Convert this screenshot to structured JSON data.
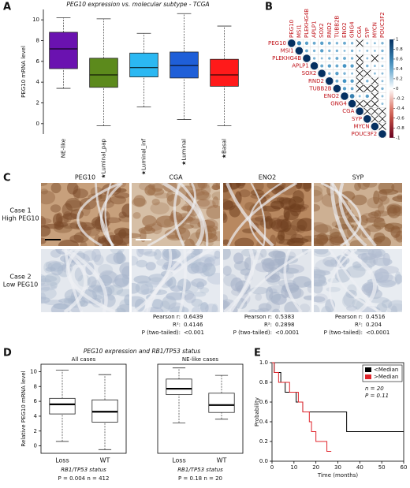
{
  "panel_labels": [
    "A",
    "B",
    "C",
    "D",
    "E"
  ],
  "chart_data": [
    {
      "type": "box",
      "title": "PEG10 expression vs. molecular subtype - TCGA",
      "y_label": "PEG10 mRNA level",
      "categories": [
        "NE-like",
        "★Luminal_pap",
        "★Luminal_inf",
        "★Luminal",
        "★Basal"
      ],
      "boxes": [
        {
          "color": "#6a12b0",
          "whisker_low": 3.4,
          "q1": 5.3,
          "median": 7.2,
          "q3": 8.8,
          "whisker_high": 10.2
        },
        {
          "color": "#5c8a1c",
          "whisker_low": -0.2,
          "q1": 3.5,
          "median": 4.7,
          "q3": 6.3,
          "whisker_high": 10.1
        },
        {
          "color": "#2bb8f2",
          "whisker_low": 1.6,
          "q1": 4.5,
          "median": 5.4,
          "q3": 6.8,
          "whisker_high": 8.7
        },
        {
          "color": "#1f5fd8",
          "whisker_low": 0.4,
          "q1": 4.4,
          "median": 5.6,
          "q3": 6.9,
          "whisker_high": 10.6
        },
        {
          "color": "#ff1a1a",
          "whisker_low": -0.2,
          "q1": 3.6,
          "median": 4.7,
          "q3": 6.2,
          "whisker_high": 9.4
        }
      ],
      "ylim": [
        -1,
        11
      ],
      "yticks": [
        0,
        2,
        4,
        6,
        8,
        10
      ]
    },
    {
      "type": "corrplot",
      "genes": [
        "PEG10",
        "MSI1",
        "PLEKHG4B",
        "APLP1",
        "SOX2",
        "RND2",
        "TUBB2B",
        "ENO2",
        "GNG4",
        "CGA",
        "SYP",
        "MYCN",
        "POUC3F2"
      ],
      "values": [
        [
          1,
          0.55,
          0.45,
          0.4,
          0.45,
          0.4,
          0.35,
          0.4,
          0.35,
          null,
          0.3,
          0.3,
          0.35
        ],
        [
          1,
          0.4,
          0.35,
          0.45,
          0.35,
          0.35,
          0.3,
          0.35,
          0.25,
          0.3,
          0.3,
          0.35
        ],
        [
          1,
          0.35,
          0.3,
          0.35,
          0.4,
          0.4,
          0.35,
          null,
          0.3,
          null,
          0.3
        ],
        [
          1,
          0.4,
          0.45,
          0.4,
          0.5,
          0.45,
          null,
          0.35,
          0.3,
          0.3
        ],
        [
          1,
          0.35,
          0.45,
          0.35,
          0.3,
          null,
          null,
          0.3,
          0.3
        ],
        [
          1,
          0.4,
          0.5,
          0.45,
          null,
          0.35,
          null,
          0.3
        ],
        [
          1,
          0.45,
          0.4,
          null,
          null,
          null,
          0.35
        ],
        [
          1,
          0.6,
          0.3,
          0.45,
          null,
          0.3
        ],
        [
          1,
          null,
          null,
          null,
          0.3
        ],
        [
          1,
          null,
          null,
          null
        ],
        [
          1,
          null,
          null
        ],
        [
          1,
          null
        ],
        [
          1
        ]
      ],
      "clim": [
        -1,
        1
      ],
      "colorbar_ticks": [
        1,
        0.8,
        0.6,
        0.4,
        0.2,
        0,
        -0.2,
        -0.4,
        -0.6,
        -0.8,
        -1
      ]
    },
    {
      "type": "box",
      "title": "PEG10 expression and RB1/TP53 status",
      "subtitle": "All cases",
      "y_label": "Relative PEG10 mRNA level",
      "x_label": "RB1/TP53 status",
      "footnote": "P = 0.004  n = 412",
      "categories": [
        "Loss",
        "WT"
      ],
      "boxes": [
        {
          "color": "#ffffff",
          "whisker_low": 0.6,
          "q1": 4.3,
          "median": 5.6,
          "q3": 6.4,
          "whisker_high": 10.2
        },
        {
          "color": "#ffffff",
          "whisker_low": -0.5,
          "q1": 3.2,
          "median": 4.6,
          "q3": 6.2,
          "whisker_high": 9.6
        }
      ],
      "ylim": [
        -1,
        11
      ],
      "yticks": [
        0,
        2,
        4,
        6,
        8,
        10
      ]
    },
    {
      "type": "box",
      "subtitle": "NE-like cases",
      "x_label": "RB1/TP53 status",
      "footnote": "P = 0.18  n = 20",
      "categories": [
        "Loss",
        "WT"
      ],
      "boxes": [
        {
          "color": "#ffffff",
          "whisker_low": 3.1,
          "q1": 6.9,
          "median": 7.7,
          "q3": 9.0,
          "whisker_high": 10.5
        },
        {
          "color": "#ffffff",
          "whisker_low": 3.6,
          "q1": 4.5,
          "median": 5.5,
          "q3": 7.1,
          "whisker_high": 9.5
        }
      ],
      "ylim": [
        -1,
        11
      ]
    },
    {
      "type": "step",
      "x_label": "Time (months)",
      "y_label": "Probability",
      "annotations": [
        "n = 20",
        "P = 0.11"
      ],
      "series": [
        {
          "name": "<Median",
          "color": "#000000",
          "x": [
            0,
            1,
            4,
            6,
            11,
            14,
            34,
            60
          ],
          "values": [
            1,
            0.9,
            0.8,
            0.7,
            0.6,
            0.5,
            0.3,
            0.3
          ]
        },
        {
          "name": ">Median",
          "color": "#e0242b",
          "x": [
            0,
            1,
            3,
            8,
            12,
            14,
            17,
            18,
            20,
            25,
            27
          ],
          "values": [
            1,
            0.9,
            0.8,
            0.7,
            0.6,
            0.5,
            0.4,
            0.3,
            0.2,
            0.1,
            0.1
          ]
        }
      ],
      "xlim": [
        0,
        60
      ],
      "xticks": [
        0,
        10,
        20,
        30,
        40,
        50,
        60
      ],
      "ylim": [
        0,
        1
      ],
      "yticks": [
        {
          "value": 0,
          "label": "0.0"
        },
        {
          "value": 0.2,
          "label": "0.2"
        },
        {
          "value": 0.4,
          "label": "0.4"
        },
        {
          "value": 0.6,
          "label": "0.6"
        },
        {
          "value": 0.8,
          "label": "0.8"
        },
        {
          "value": 1,
          "label": "1.0"
        }
      ],
      "legend": "top-right"
    }
  ],
  "ihc": {
    "markers": [
      "PEG10",
      "CGA",
      "ENO2",
      "SYP"
    ],
    "cases": [
      {
        "name": "Case 1",
        "group": "High PEG10"
      },
      {
        "name": "Case 2",
        "group": "Low PEG10"
      }
    ],
    "stat_labels": [
      "Pearson r:",
      "R²:",
      "P (two-tailed):"
    ],
    "stats": [
      {
        "pearson_r": 0.6439,
        "r2": 0.4146,
        "p": "<0.001"
      },
      {
        "pearson_r": 0.5383,
        "r2": 0.2898,
        "p": "<0.0001"
      },
      {
        "pearson_r": 0.4516,
        "r2": 0.204,
        "p": "<0.0001"
      }
    ]
  }
}
